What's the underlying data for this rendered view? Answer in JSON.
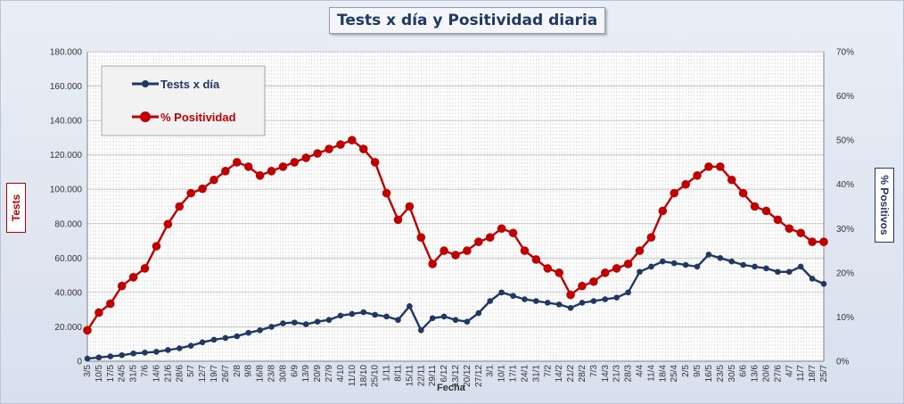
{
  "chart_data": {
    "type": "line",
    "title": "Tests x día y Positividad diaria",
    "xlabel": "Fecha",
    "ylabel_left": "Tests",
    "ylabel_right": "% Positivos",
    "ylim_left": [
      0,
      180000
    ],
    "ylim_right": [
      0,
      70
    ],
    "yticks_left": [
      "0",
      "20.000",
      "40.000",
      "60.000",
      "80.000",
      "100.000",
      "120.000",
      "140.000",
      "160.000",
      "180.000"
    ],
    "yticks_right": [
      "0%",
      "10%",
      "20%",
      "30%",
      "40%",
      "50%",
      "60%",
      "70%"
    ],
    "categories": [
      "3/5",
      "10/5",
      "17/5",
      "24/5",
      "31/5",
      "7/6",
      "14/6",
      "21/6",
      "28/6",
      "5/7",
      "12/7",
      "19/7",
      "26/7",
      "2/8",
      "9/8",
      "16/8",
      "23/8",
      "30/8",
      "6/9",
      "13/9",
      "20/9",
      "27/9",
      "4/10",
      "11/10",
      "18/10",
      "25/10",
      "1/11",
      "8/11",
      "15/11",
      "22/11",
      "29/11",
      "6/12",
      "13/12",
      "20/12",
      "27/12",
      "3/1",
      "10/1",
      "17/1",
      "24/1",
      "31/1",
      "7/2",
      "14/2",
      "21/2",
      "28/2",
      "7/3",
      "14/3",
      "21/3",
      "28/3",
      "4/4",
      "11/4",
      "18/4",
      "25/4",
      "2/5",
      "9/5",
      "16/5",
      "23/5",
      "30/5",
      "6/6",
      "13/6",
      "20/6",
      "27/6",
      "4/7",
      "11/7",
      "18/7",
      "25/7"
    ],
    "legend": {
      "position": "top-left",
      "entries": [
        {
          "name": "Tests x día",
          "color": "#1f3864"
        },
        {
          "name": "% Positividad",
          "color": "#c00000"
        }
      ]
    },
    "grid": true,
    "series": [
      {
        "name": "Tests x día",
        "axis": "left",
        "color": "#1f3864",
        "values": [
          1500,
          2200,
          2800,
          3500,
          4500,
          5000,
          5500,
          6500,
          7500,
          9000,
          11000,
          12500,
          13500,
          14500,
          16500,
          18000,
          20000,
          22000,
          22500,
          21500,
          23000,
          24000,
          26500,
          27500,
          28500,
          27000,
          26000,
          24000,
          32000,
          18000,
          25000,
          26000,
          24000,
          23000,
          28000,
          35000,
          40000,
          38000,
          36000,
          35000,
          34000,
          33000,
          31000,
          34000,
          35000,
          36000,
          37000,
          40000,
          52000,
          55000,
          58000,
          57000,
          56000,
          55000,
          62000,
          60000,
          58000,
          56000,
          55000,
          54000,
          52000,
          52000,
          55000,
          48000,
          45000
        ]
      },
      {
        "name": "% Positividad",
        "axis": "right",
        "color": "#c00000",
        "values": [
          7,
          11,
          13,
          17,
          19,
          21,
          26,
          31,
          35,
          38,
          39,
          41,
          43,
          45,
          44,
          42,
          43,
          44,
          45,
          46,
          47,
          48,
          49,
          50,
          48,
          45,
          38,
          32,
          35,
          28,
          22,
          25,
          24,
          25,
          27,
          28,
          30,
          29,
          25,
          23,
          21,
          20,
          15,
          17,
          18,
          20,
          21,
          22,
          25,
          28,
          34,
          38,
          40,
          42,
          44,
          44,
          41,
          38,
          35,
          34,
          32,
          30,
          29,
          27,
          27
        ]
      }
    ]
  }
}
